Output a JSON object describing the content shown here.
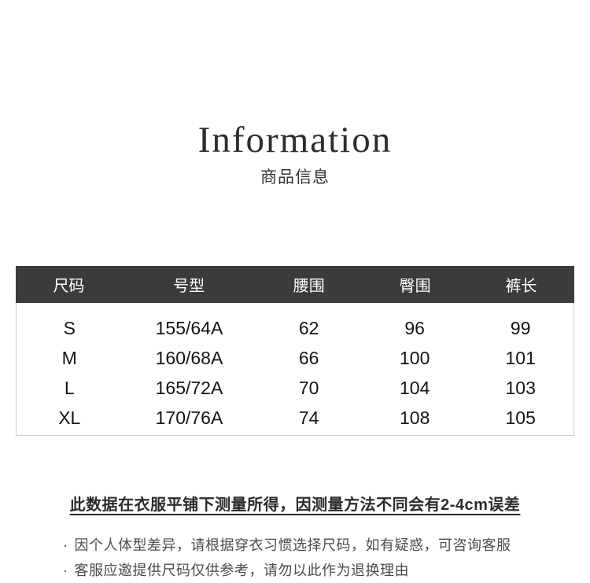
{
  "page": {
    "title": "Information",
    "subtitle": "商品信息"
  },
  "size_table": {
    "columns": [
      "尺码",
      "号型",
      "腰围",
      "臀围",
      "裤长"
    ],
    "rows": [
      [
        "S",
        "155/64A",
        "62",
        "96",
        "99"
      ],
      [
        "M",
        "160/68A",
        "66",
        "100",
        "101"
      ],
      [
        "L",
        "165/72A",
        "70",
        "104",
        "103"
      ],
      [
        "XL",
        "170/76A",
        "74",
        "108",
        "105"
      ]
    ],
    "colors": {
      "header_background": "#3b3b3b",
      "header_text": "#ffffff",
      "body_text": "#141414",
      "border": "#cccccc"
    }
  },
  "notes": {
    "bullet_char": "·",
    "measurement_note": "此数据在衣服平铺下测量所得，因测量方法不同会有2-4cm误差",
    "bullets": [
      "因个人体型差异，请根据穿衣习惯选择尺码，如有疑惑，可咨询客服",
      "客服应邀提供尺码仅供参考，请勿以此作为退换理由"
    ]
  }
}
